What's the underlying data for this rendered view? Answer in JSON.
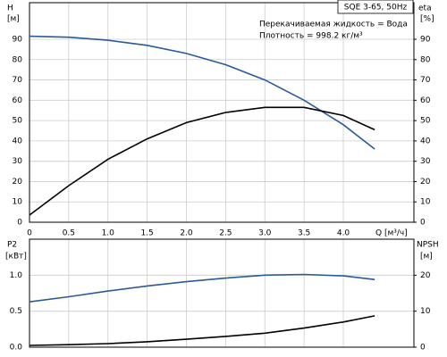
{
  "chart_data": [
    {
      "type": "line",
      "title": "SQE 3-65, 50Hz",
      "annotations": [
        "Перекачиваемая жидкость = Вода",
        "Плотность = 998.2 кг/м³"
      ],
      "ylabel": "H",
      "yunit": "[м]",
      "y2label": "eta",
      "y2unit": "[%]",
      "xlabel": "Q [м³/ч]",
      "xlim": [
        0,
        4.9
      ],
      "xticks": [
        0,
        0.5,
        {
          "value": 1,
          "label": "1.0"
        },
        1.5,
        {
          "value": 2,
          "label": "2.0"
        },
        2.5,
        {
          "value": 3,
          "label": "3.0"
        },
        3.5,
        {
          "value": 4,
          "label": "4.0"
        }
      ],
      "show_xtick_labels": true,
      "ylim": [
        0,
        108
      ],
      "yticks": [
        0,
        10,
        20,
        30,
        40,
        50,
        60,
        70,
        80,
        90
      ],
      "y2lim": [
        0,
        108
      ],
      "y2ticks": [
        0,
        10,
        20,
        30,
        40,
        50,
        60,
        70,
        80,
        90
      ],
      "grid": true,
      "x": [
        0,
        0.5,
        1,
        1.5,
        2,
        2.5,
        3,
        3.5,
        4,
        4.4
      ],
      "series": [
        {
          "color": "#2a5a9a",
          "values": [
            91.5,
            91,
            89.5,
            87,
            83,
            77.5,
            70,
            60,
            48,
            36
          ]
        },
        {
          "color": "#000000",
          "axis": "y2",
          "values": [
            3.5,
            18,
            31,
            41,
            49,
            54,
            56.5,
            56.5,
            52.5,
            45.5
          ]
        }
      ]
    },
    {
      "type": "line",
      "ylabel": "P2",
      "yunit": "[кВт]",
      "y2label": "NPSH",
      "y2unit": "[м]",
      "xlim": [
        0,
        4.9
      ],
      "xticks": [
        0,
        0.5,
        1,
        1.5,
        2,
        2.5,
        3,
        3.5,
        4
      ],
      "show_xtick_labels": false,
      "ylim": [
        0,
        1.5
      ],
      "yticks": [
        {
          "value": 0,
          "label": "0.0"
        },
        0.5,
        {
          "value": 1,
          "label": "1.0"
        }
      ],
      "y2lim": [
        0,
        30
      ],
      "y2ticks": [
        0,
        10,
        20
      ],
      "grid": true,
      "x": [
        0,
        0.5,
        1,
        1.5,
        2,
        2.5,
        3,
        3.5,
        4,
        4.4
      ],
      "series": [
        {
          "color": "#2a5a9a",
          "values": [
            0.63,
            0.7,
            0.78,
            0.85,
            0.91,
            0.96,
            1.0,
            1.01,
            0.99,
            0.94
          ]
        },
        {
          "color": "#000000",
          "axis": "y2",
          "values": [
            0.5,
            0.7,
            1.0,
            1.5,
            2.2,
            3.0,
            3.9,
            5.3,
            7.0,
            8.7
          ]
        }
      ]
    }
  ]
}
